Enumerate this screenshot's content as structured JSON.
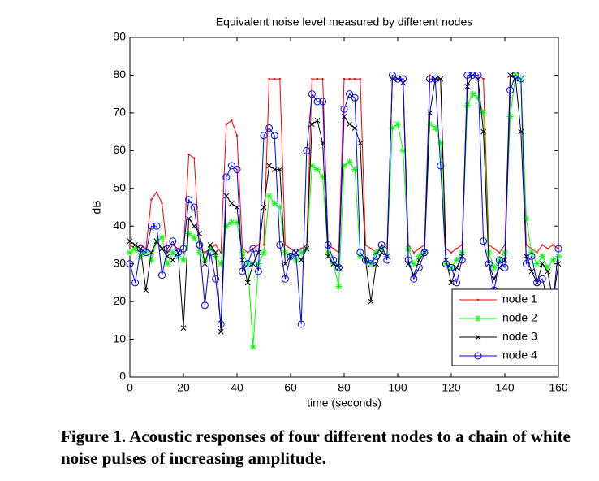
{
  "chart_data": {
    "type": "line",
    "title": "Equivalent noise level measured by different nodes",
    "xlabel": "time (seconds)",
    "ylabel": "dB",
    "xlim": [
      0,
      160
    ],
    "xticks": [
      0,
      20,
      40,
      60,
      80,
      100,
      120,
      140,
      160
    ],
    "ylim": [
      0,
      90
    ],
    "yticks": [
      0,
      10,
      20,
      30,
      40,
      50,
      60,
      70,
      80,
      90
    ],
    "grid": false,
    "legend": "lower right",
    "x": [
      0,
      2,
      4,
      6,
      8,
      10,
      12,
      14,
      16,
      18,
      20,
      22,
      24,
      26,
      28,
      30,
      32,
      34,
      36,
      38,
      40,
      42,
      44,
      46,
      48,
      50,
      52,
      54,
      56,
      58,
      60,
      62,
      64,
      66,
      68,
      70,
      72,
      74,
      76,
      78,
      80,
      82,
      84,
      86,
      88,
      90,
      92,
      94,
      96,
      98,
      100,
      102,
      104,
      106,
      108,
      110,
      112,
      114,
      116,
      118,
      120,
      122,
      124,
      126,
      128,
      130,
      132,
      134,
      136,
      138,
      140,
      142,
      144,
      146,
      148,
      150,
      152,
      154,
      156,
      158,
      160
    ],
    "series": [
      {
        "name": "node 1",
        "color": "#ff0000",
        "marker": "dot",
        "values": [
          35,
          34,
          35,
          34,
          47,
          49,
          46,
          33,
          35,
          34,
          33,
          59,
          58,
          34,
          33,
          34,
          35,
          33,
          67,
          68,
          64,
          34,
          33,
          34,
          35,
          35,
          79,
          79,
          79,
          35,
          34,
          33,
          34,
          35,
          79,
          79,
          79,
          35,
          34,
          33,
          79,
          79,
          79,
          79,
          35,
          34,
          33,
          35,
          34,
          79,
          79,
          79,
          35,
          33,
          34,
          35,
          80,
          79,
          79,
          34,
          33,
          34,
          35,
          79,
          80,
          80,
          79,
          35,
          34,
          33,
          35,
          80,
          80,
          79,
          35,
          34,
          33,
          35,
          34,
          35,
          34
        ]
      },
      {
        "name": "node 2",
        "color": "#00ff00",
        "marker": "asterisk",
        "values": [
          33,
          34,
          32,
          33,
          31,
          36,
          37,
          30,
          33,
          32,
          31,
          38,
          37,
          33,
          31,
          34,
          32,
          30,
          40,
          41,
          41,
          33,
          30,
          8,
          30,
          33,
          48,
          46,
          45,
          33,
          32,
          31,
          33,
          34,
          56,
          55,
          53,
          33,
          30,
          24,
          56,
          57,
          55,
          32,
          31,
          30,
          33,
          34,
          32,
          66,
          67,
          60,
          34,
          30,
          32,
          33,
          67,
          66,
          62,
          30,
          29,
          31,
          33,
          72,
          75,
          74,
          70,
          33,
          29,
          31,
          33,
          69,
          80,
          79,
          42,
          33,
          30,
          32,
          29,
          31,
          32
        ]
      },
      {
        "name": "node 3",
        "color": "#000000",
        "marker": "x",
        "values": [
          36,
          35,
          34,
          23,
          33,
          36,
          34,
          32,
          31,
          33,
          13,
          42,
          40,
          38,
          30,
          35,
          33,
          12,
          48,
          46,
          45,
          31,
          25,
          30,
          33,
          45,
          56,
          55,
          55,
          30,
          32,
          33,
          31,
          34,
          67,
          68,
          62,
          32,
          30,
          29,
          69,
          67,
          66,
          62,
          31,
          20,
          30,
          33,
          32,
          79,
          79,
          78,
          30,
          27,
          31,
          33,
          70,
          79,
          79,
          31,
          25,
          29,
          32,
          77,
          80,
          79,
          65,
          30,
          26,
          29,
          31,
          80,
          79,
          65,
          32,
          28,
          25,
          30,
          28,
          20,
          30
        ]
      },
      {
        "name": "node 4",
        "color": "#0000ff",
        "marker": "circle",
        "values": [
          30,
          25,
          34,
          33,
          40,
          40,
          27,
          34,
          36,
          33,
          34,
          47,
          45,
          35,
          19,
          33,
          26,
          14,
          53,
          56,
          55,
          28,
          30,
          34,
          28,
          64,
          66,
          64,
          35,
          26,
          32,
          33,
          14,
          60,
          75,
          73,
          73,
          35,
          31,
          29,
          71,
          75,
          74,
          33,
          31,
          30,
          32,
          35,
          31,
          80,
          79,
          79,
          31,
          26,
          29,
          33,
          79,
          79,
          56,
          30,
          29,
          25,
          31,
          80,
          80,
          80,
          36,
          30,
          23,
          31,
          29,
          76,
          80,
          79,
          30,
          32,
          25,
          26,
          20,
          20,
          34
        ]
      }
    ]
  },
  "caption": "Figure 1.  Acoustic responses of four different nodes to a chain of white noise pulses of increasing amplitude."
}
